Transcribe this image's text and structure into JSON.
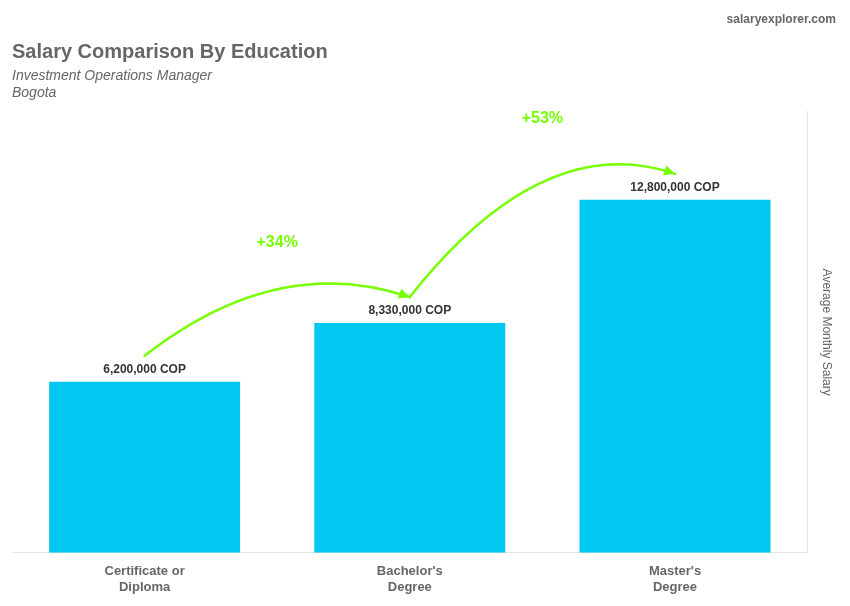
{
  "chart_data": {
    "type": "bar",
    "title": "Salary Comparison By Education",
    "subtitle": "Investment Operations Manager",
    "city": "Bogota",
    "watermark": "salaryexplorer.com",
    "ylabel": "Average Monthly Salary",
    "categories": [
      "Certificate or\nDiploma",
      "Bachelor's\nDegree",
      "Master's\nDegree"
    ],
    "values": [
      6200000,
      8330000,
      12800000
    ],
    "value_labels": [
      "6,200,000 COP",
      "8,330,000 COP",
      "12,800,000 COP"
    ],
    "data_labels": true,
    "color": "#00c8f0",
    "annotations": [
      {
        "text": "+34%",
        "from": 0,
        "to": 1,
        "color": "#77ff00"
      },
      {
        "text": "+53%",
        "from": 1,
        "to": 2,
        "color": "#77ff00"
      }
    ],
    "ylim": [
      0,
      16000000
    ],
    "yticks": [],
    "grid": false,
    "tick_labels": "x"
  }
}
